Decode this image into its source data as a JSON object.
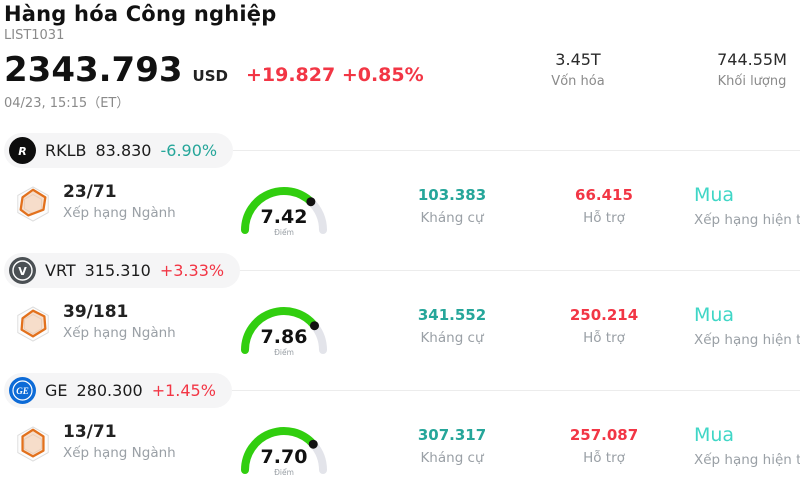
{
  "colors": {
    "up": "#f23645",
    "down": "#26a69a",
    "buy": "#3fd6c6",
    "gauge_green": "#31ce0f"
  },
  "header": {
    "title": "Hàng hóa Công nghiệp",
    "list_id": "LIST1031",
    "price": "2343.793",
    "currency": "USD",
    "change": "+19.827 +0.85%",
    "datetime": "04/23, 15:15（ET）",
    "stats": [
      {
        "value": "3.45T",
        "label": "Vốn hóa"
      },
      {
        "value": "744.55M",
        "label": "Khối lượng"
      }
    ]
  },
  "rows": [
    {
      "ticker": "RKLB",
      "price": "83.830",
      "change": "-6.90%",
      "logo_text": "R",
      "logo_bg": "#0d0d0d",
      "logo_name": "rocket-lab-logo",
      "rank": "23/71",
      "rank_label": "Xếp hạng Ngành",
      "score": "7.42",
      "score_label": "Điểm",
      "resistance": "103.383",
      "resistance_label": "Kháng cự",
      "support": "66.415",
      "support_label": "Hỗ trợ",
      "rating": "Mua",
      "rating_label": "Xếp hạng hiện tại"
    },
    {
      "ticker": "VRT",
      "price": "315.310",
      "change": "+3.33%",
      "logo_text": "V",
      "logo_bg": "#4b5054",
      "logo_name": "vertiv-logo",
      "rank": "39/181",
      "rank_label": "Xếp hạng Ngành",
      "score": "7.86",
      "score_label": "Điểm",
      "resistance": "341.552",
      "resistance_label": "Kháng cự",
      "support": "250.214",
      "support_label": "Hỗ trợ",
      "rating": "Mua",
      "rating_label": "Xếp hạng hiện tại"
    },
    {
      "ticker": "GE",
      "price": "280.300",
      "change": "+1.45%",
      "logo_text": "GE",
      "logo_bg": "#0d6bd7",
      "logo_name": "general-electric-logo",
      "rank": "13/71",
      "rank_label": "Xếp hạng Ngành",
      "score": "7.70",
      "score_label": "Điểm",
      "resistance": "307.317",
      "resistance_label": "Kháng cự",
      "support": "257.087",
      "support_label": "Hỗ trợ",
      "rating": "Mua",
      "rating_label": "Xếp hạng hiện tại"
    }
  ]
}
